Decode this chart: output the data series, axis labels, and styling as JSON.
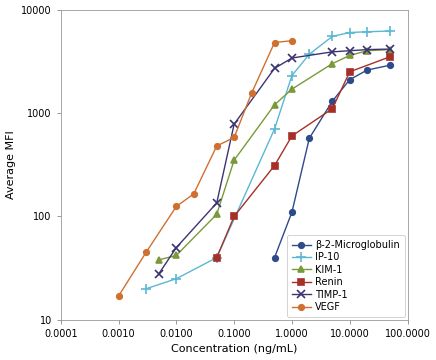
{
  "title": "",
  "xlabel": "Concentration (ng/mL)",
  "ylabel": "Average MFI",
  "series": {
    "b2-Microglobulin": {
      "color": "#2E4A8B",
      "marker": "o",
      "markersize": 4,
      "label": "β-2-Microglobulin",
      "x": [
        0.5,
        1.0,
        2.0,
        5.0,
        10.0,
        20.0,
        50.0
      ],
      "y": [
        40,
        110,
        570,
        1300,
        2100,
        2600,
        2900
      ]
    },
    "IP-10": {
      "color": "#5BB8D4",
      "marker": "+",
      "markersize": 7,
      "label": "IP-10",
      "x": [
        0.003,
        0.01,
        0.05,
        0.5,
        1.0,
        2.0,
        5.0,
        10.0,
        20.0,
        50.0
      ],
      "y": [
        20,
        25,
        40,
        700,
        2300,
        3700,
        5500,
        6000,
        6100,
        6200
      ]
    },
    "KIM-1": {
      "color": "#7A9A3A",
      "marker": "^",
      "markersize": 5,
      "label": "KIM-1",
      "x": [
        0.005,
        0.01,
        0.05,
        0.1,
        0.5,
        1.0,
        5.0,
        10.0,
        20.0,
        50.0
      ],
      "y": [
        38,
        42,
        105,
        350,
        1200,
        1700,
        3000,
        3600,
        4000,
        4100
      ]
    },
    "Renin": {
      "color": "#A63028",
      "marker": "s",
      "markersize": 4,
      "label": "Renin",
      "x": [
        0.05,
        0.1,
        0.5,
        1.0,
        5.0,
        10.0,
        50.0
      ],
      "y": [
        40,
        100,
        310,
        600,
        1100,
        2500,
        3500
      ]
    },
    "TIMP-1": {
      "color": "#3C3472",
      "marker": "x",
      "markersize": 6,
      "label": "TIMP-1",
      "x": [
        0.005,
        0.01,
        0.05,
        0.1,
        0.5,
        1.0,
        5.0,
        10.0,
        20.0,
        50.0
      ],
      "y": [
        28,
        50,
        135,
        780,
        2700,
        3400,
        3900,
        4000,
        4100,
        4150
      ]
    },
    "VEGF": {
      "color": "#D07030",
      "marker": "o",
      "markersize": 4,
      "label": "VEGF",
      "x": [
        0.001,
        0.003,
        0.01,
        0.02,
        0.05,
        0.1,
        0.2,
        0.5,
        1.0
      ],
      "y": [
        17,
        45,
        125,
        165,
        480,
        580,
        1550,
        4800,
        5000
      ]
    }
  },
  "background_color": "#ffffff",
  "legend_fontsize": 7,
  "axis_fontsize": 8,
  "tick_fontsize": 7
}
